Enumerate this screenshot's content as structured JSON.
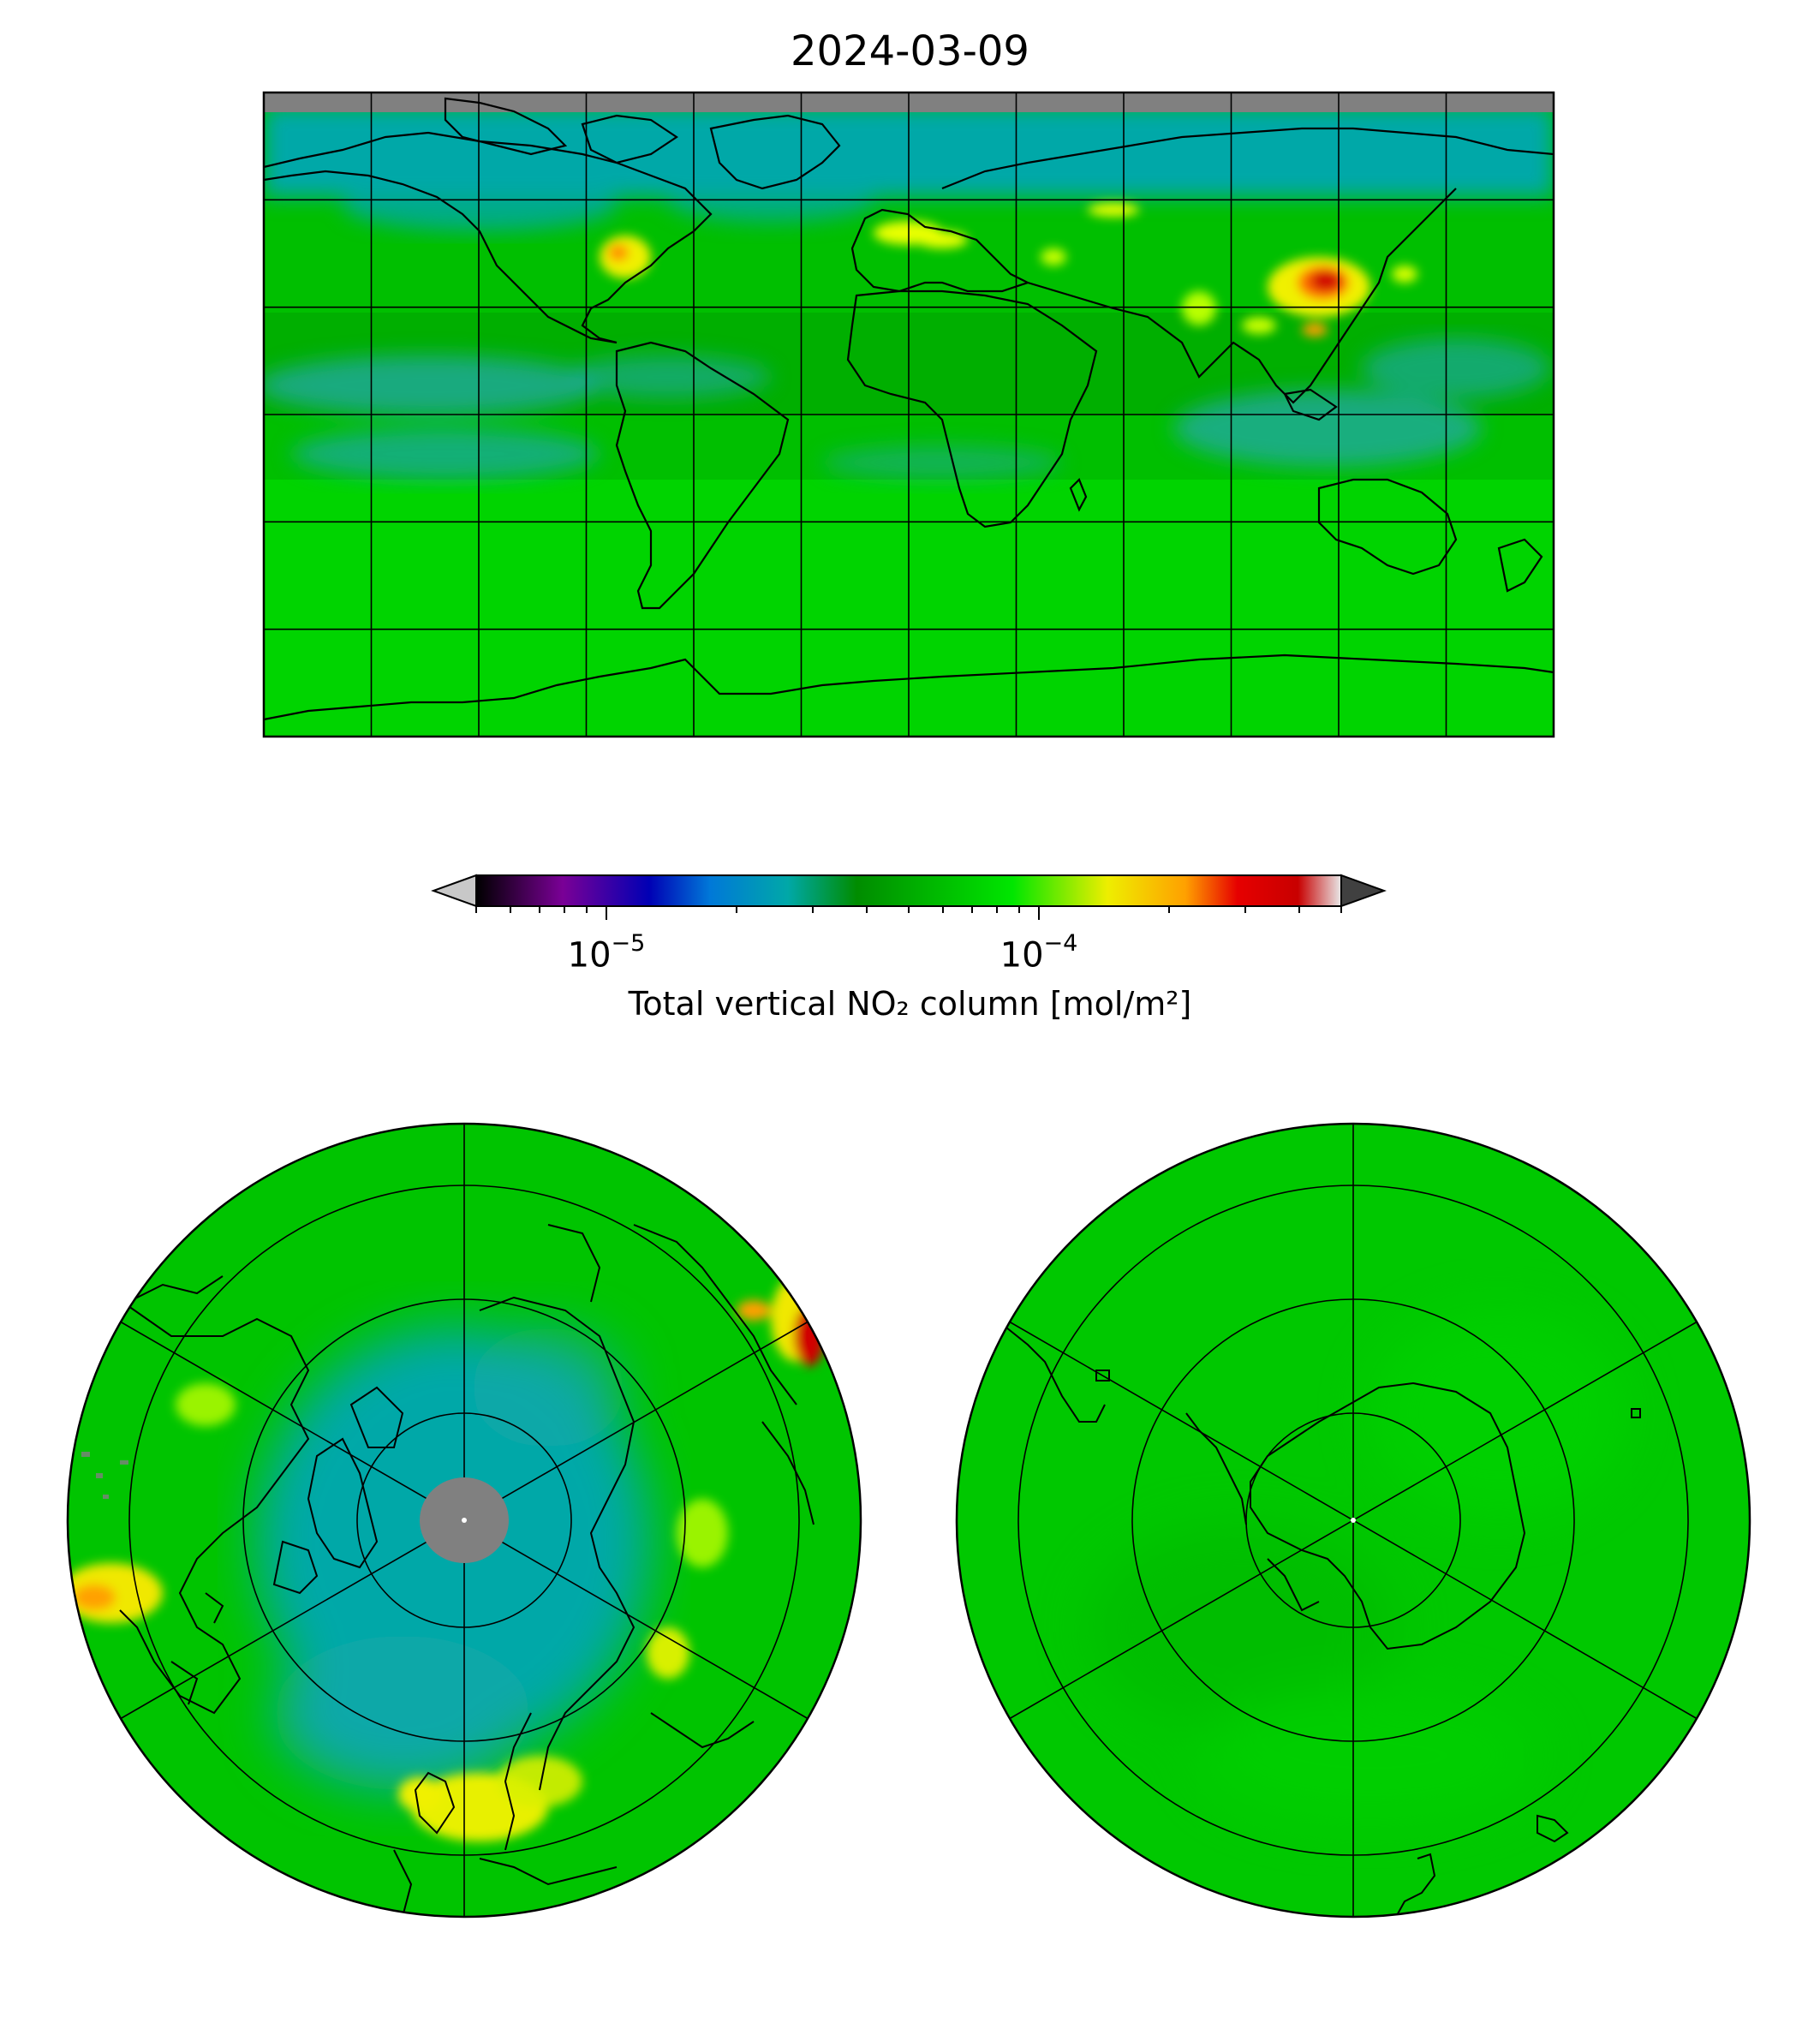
{
  "title": "2024-03-09",
  "colorbar": {
    "label": "Total vertical NO₂ column [mol/m²]",
    "scale": "log",
    "range": [
      5e-06,
      0.0005
    ],
    "extend": "both",
    "colormap_stops": [
      "#000000",
      "#7a0096",
      "#0000b4",
      "#0078d8",
      "#00a8a8",
      "#008c00",
      "#00b400",
      "#00e600",
      "#eeee00",
      "#ffa000",
      "#e60000",
      "#c80000",
      "#e0e0e0"
    ],
    "under_color": "#c8c8c8",
    "over_color": "#404040",
    "tick_labels": [
      {
        "base": "10",
        "exp": "−5",
        "value": 1e-05
      },
      {
        "base": "10",
        "exp": "−4",
        "value": 0.0001
      }
    ]
  },
  "maps": {
    "global": {
      "projection": "equirectangular",
      "gridlines": true,
      "coastlines": true
    },
    "north_polar": {
      "projection": "north polar stereographic",
      "gridlines": true,
      "coastlines": true
    },
    "south_polar": {
      "projection": "south polar stereographic",
      "gridlines": true,
      "coastlines": true
    }
  },
  "colors": {
    "no_data": "#808080",
    "background_field": "#00c800",
    "arctic_field": "#00a8a8",
    "hotspot_yellow": "#f0f000",
    "hotspot_red": "#d00000"
  }
}
